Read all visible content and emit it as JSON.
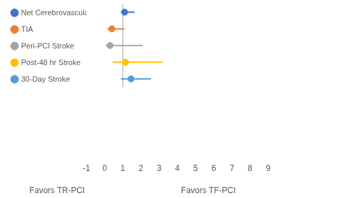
{
  "chart_data": {
    "type": "forest",
    "categories": [
      "Net Cerebrovascular Events",
      "TIA",
      "Peri-PCI Stroke",
      "Post-48 hr Stroke",
      "30-Day Stroke"
    ],
    "values": [
      1.1,
      0.4,
      0.3,
      1.15,
      1.45
    ],
    "ci_low": [
      0.9,
      0.15,
      0.05,
      0.45,
      0.9
    ],
    "ci_high": [
      1.65,
      1.1,
      2.1,
      3.2,
      2.55
    ],
    "colors": [
      "#4472c4",
      "#ed7d31",
      "#a5a5a5",
      "#ffc000",
      "#5b9bd5"
    ],
    "xlim": [
      -1,
      9
    ],
    "xticks": [
      -1,
      0,
      1,
      2,
      3,
      4,
      5,
      6,
      7,
      8,
      9
    ],
    "reference_line": 1,
    "annotations": {
      "left": "Favors TR-PCI",
      "right": "Favors TF-PCI"
    },
    "grid": false,
    "legend": "left",
    "tick_labels": "x"
  }
}
